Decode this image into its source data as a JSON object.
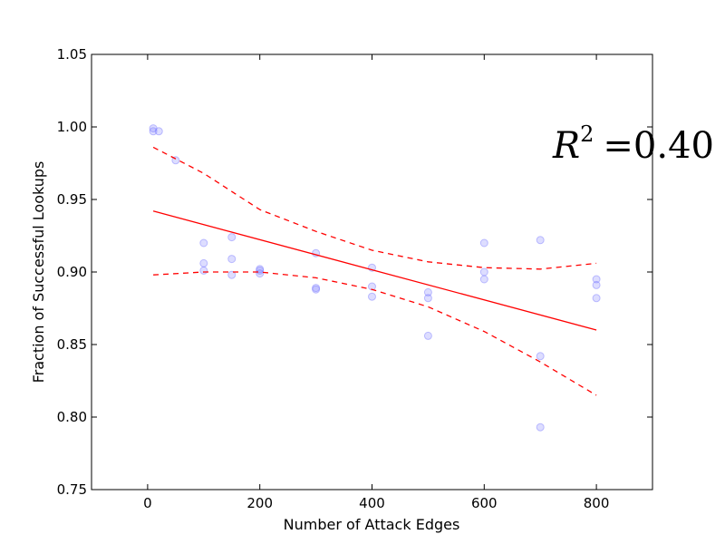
{
  "chart_data": {
    "type": "scatter",
    "xlabel": "Number of Attack Edges",
    "ylabel": "Fraction of Successful Lookups",
    "xlim": [
      -100,
      900
    ],
    "ylim": [
      0.75,
      1.05
    ],
    "x_ticks": [
      0,
      200,
      400,
      600,
      800
    ],
    "y_ticks": [
      0.75,
      0.8,
      0.85,
      0.9,
      0.95,
      1.0,
      1.05
    ],
    "x_tick_labels": [
      "0",
      "200",
      "400",
      "600",
      "800"
    ],
    "y_tick_labels": [
      "0.75",
      "0.80",
      "0.85",
      "0.90",
      "0.95",
      "1.00",
      "1.05"
    ],
    "grid": false,
    "annotation": {
      "r2_symbol": "R",
      "r2_exponent": "2",
      "r2_eq": "=",
      "r2_value": "0.40"
    },
    "point_color": "#7777ff",
    "fit_color": "#ff0000",
    "points": [
      {
        "x": 10,
        "y": 0.999
      },
      {
        "x": 10,
        "y": 0.997
      },
      {
        "x": 20,
        "y": 0.997
      },
      {
        "x": 50,
        "y": 0.977
      },
      {
        "x": 100,
        "y": 0.92
      },
      {
        "x": 100,
        "y": 0.906
      },
      {
        "x": 100,
        "y": 0.901
      },
      {
        "x": 150,
        "y": 0.924
      },
      {
        "x": 150,
        "y": 0.909
      },
      {
        "x": 150,
        "y": 0.898
      },
      {
        "x": 200,
        "y": 0.902
      },
      {
        "x": 200,
        "y": 0.901
      },
      {
        "x": 200,
        "y": 0.899
      },
      {
        "x": 300,
        "y": 0.913
      },
      {
        "x": 300,
        "y": 0.889
      },
      {
        "x": 300,
        "y": 0.888
      },
      {
        "x": 400,
        "y": 0.903
      },
      {
        "x": 400,
        "y": 0.89
      },
      {
        "x": 400,
        "y": 0.883
      },
      {
        "x": 500,
        "y": 0.886
      },
      {
        "x": 500,
        "y": 0.882
      },
      {
        "x": 500,
        "y": 0.856
      },
      {
        "x": 600,
        "y": 0.92
      },
      {
        "x": 600,
        "y": 0.9
      },
      {
        "x": 600,
        "y": 0.895
      },
      {
        "x": 700,
        "y": 0.922
      },
      {
        "x": 700,
        "y": 0.842
      },
      {
        "x": 700,
        "y": 0.793
      },
      {
        "x": 800,
        "y": 0.895
      },
      {
        "x": 800,
        "y": 0.891
      },
      {
        "x": 800,
        "y": 0.882
      }
    ],
    "fit_line": {
      "x": [
        10,
        800
      ],
      "y": [
        0.942,
        0.86
      ]
    },
    "confidence_upper": {
      "x": [
        10,
        100,
        200,
        300,
        400,
        500,
        600,
        700,
        800
      ],
      "y": [
        0.986,
        0.968,
        0.943,
        0.928,
        0.915,
        0.907,
        0.903,
        0.902,
        0.906
      ]
    },
    "confidence_lower": {
      "x": [
        10,
        100,
        200,
        300,
        400,
        500,
        600,
        700,
        800
      ],
      "y": [
        0.898,
        0.9,
        0.9,
        0.896,
        0.888,
        0.876,
        0.859,
        0.838,
        0.815
      ]
    }
  }
}
